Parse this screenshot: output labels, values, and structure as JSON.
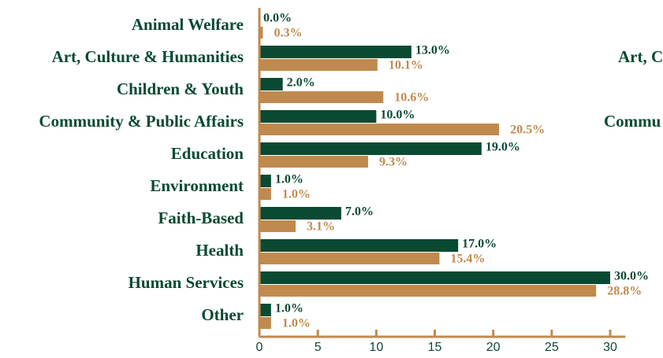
{
  "chart_data": {
    "type": "bar",
    "orientation": "horizontal",
    "categories": [
      "Animal Welfare",
      "Art, Culture & Humanities",
      "Children & Youth",
      "Community & Public Affairs",
      "Education",
      "Environment",
      "Faith-Based",
      "Health",
      "Human Services",
      "Other"
    ],
    "series": [
      {
        "color": "#0b4a32",
        "values": [
          0.0,
          13.0,
          2.0,
          10.0,
          19.0,
          1.0,
          7.0,
          17.0,
          30.0,
          1.0
        ],
        "value_labels": [
          "0.0%",
          "13.0%",
          "2.0%",
          "10.0%",
          "19.0%",
          "1.0%",
          "7.0%",
          "17.0%",
          "30.0%",
          "1.0%"
        ]
      },
      {
        "color": "#c08a4e",
        "values": [
          0.3,
          10.1,
          10.6,
          20.5,
          9.3,
          1.0,
          3.1,
          15.4,
          28.8,
          1.0
        ],
        "value_labels": [
          "0.3%",
          "10.1%",
          "10.6%",
          "20.5%",
          "9.3%",
          "1.0%",
          "3.1%",
          "15.4%",
          "28.8%",
          "1.0%"
        ]
      }
    ],
    "xlim": [
      0,
      31.3
    ],
    "xticks": [
      0,
      5,
      10,
      15,
      20,
      25,
      30
    ],
    "annotations": [
      "Art, C",
      "Commu"
    ]
  }
}
